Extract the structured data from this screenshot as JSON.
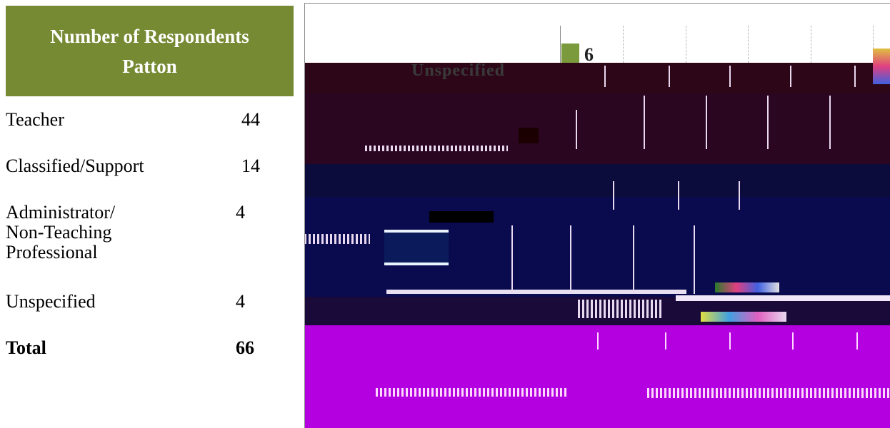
{
  "colors": {
    "header_bg": "#768a33",
    "bar": "#7a9a3c",
    "band_maroon": "#2d0718",
    "band_navy_dark": "#0c0c3c",
    "band_navy": "#0a0a4e",
    "band_magenta": "#b400e0",
    "glitch_light": "#e8d8f0"
  },
  "table": {
    "header_line1": "Number of Respondents",
    "header_line2": "Patton",
    "rows": [
      {
        "label": "Teacher",
        "value": "44"
      },
      {
        "label": "Classified/Support",
        "value": "14"
      },
      {
        "label_lines": [
          "Administrator/",
          "Non-Teaching",
          "Professional"
        ],
        "value": "4"
      },
      {
        "label": "Unspecified",
        "value": "4"
      }
    ],
    "total": {
      "label": "Total",
      "value": "66"
    }
  },
  "chart": {
    "visible_value": "6",
    "visible_category": "Unspecified"
  }
}
